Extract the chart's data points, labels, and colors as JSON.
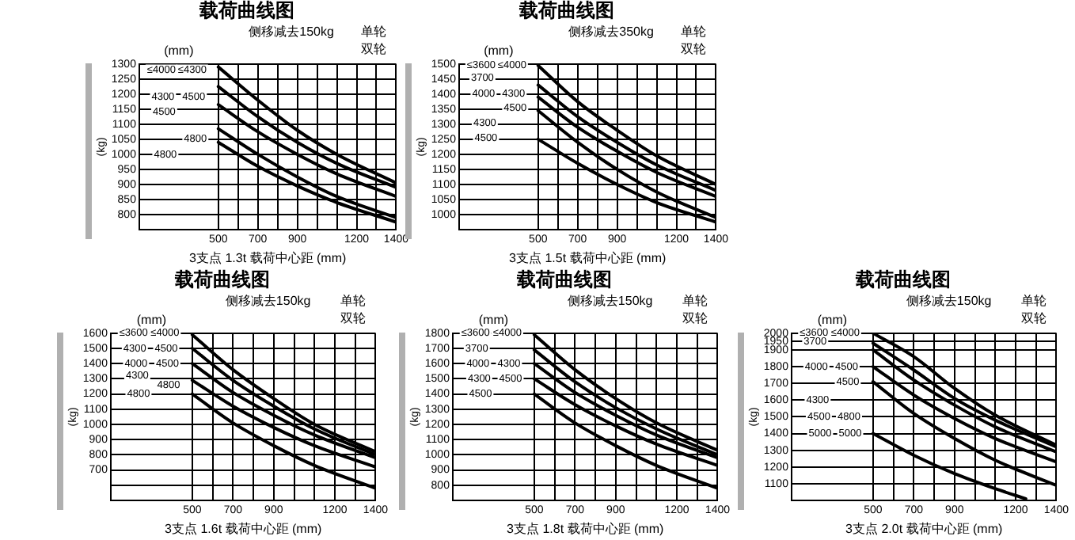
{
  "chart_data": [
    {
      "type": "line",
      "title": "载荷曲线图",
      "xlabel": "3支点 1.3t 载荷中心距 (mm)",
      "ylabel": "(kg)",
      "x": [
        500,
        700,
        900,
        1100,
        1400
      ],
      "xlim": [
        100,
        1400
      ],
      "xticks": [
        500,
        {
          "value": 600,
          "label": null
        },
        700,
        {
          "value": 800,
          "label": null
        },
        900,
        {
          "value": 1000,
          "label": null
        },
        {
          "value": 1100,
          "label": null
        },
        1200,
        {
          "value": 1300,
          "label": null
        },
        1400
      ],
      "ylim": [
        750,
        1300
      ],
      "yticks": [
        800,
        850,
        900,
        950,
        1000,
        1050,
        1100,
        1150,
        1200,
        1250,
        1300
      ],
      "grid": true,
      "marker": "none",
      "annotations": [
        "(mm)",
        "侧移减去150kg",
        "单轮",
        "双轮",
        {
          "text": "≤4000",
          "x": 212,
          "y": 1280
        },
        {
          "text": "4300",
          "x": 220,
          "y": 1190
        },
        {
          "text": "4500",
          "x": 226,
          "y": 1140
        },
        {
          "text": "4800",
          "x": 232,
          "y": 1000
        },
        {
          "text": "≤4300",
          "x": 368,
          "y": 1280
        },
        {
          "text": "4500",
          "x": 376,
          "y": 1190
        },
        {
          "text": "4800",
          "x": 384,
          "y": 1050
        }
      ],
      "series": [
        {
          "color": "#000000",
          "values": [
            1290,
            1180,
            1080,
            1000,
            905
          ]
        },
        {
          "color": "#000000",
          "values": [
            1225,
            1125,
            1040,
            970,
            890
          ]
        },
        {
          "color": "#000000",
          "values": [
            1165,
            1075,
            1000,
            935,
            860
          ]
        },
        {
          "color": "#000000",
          "values": [
            1085,
            1000,
            925,
            860,
            790
          ]
        },
        {
          "color": "#000000",
          "values": [
            1040,
            960,
            895,
            840,
            775
          ]
        }
      ]
    },
    {
      "type": "line",
      "title": "载荷曲线图",
      "xlabel": "3支点 1.5t 载荷中心距 (mm)",
      "ylabel": "(kg)",
      "x": [
        500,
        700,
        900,
        1100,
        1400
      ],
      "xlim": [
        100,
        1400
      ],
      "xticks": [
        500,
        {
          "value": 600,
          "label": null
        },
        700,
        {
          "value": 800,
          "label": null
        },
        900,
        {
          "value": 1000,
          "label": null
        },
        {
          "value": 1100,
          "label": null
        },
        1200,
        {
          "value": 1300,
          "label": null
        },
        1400
      ],
      "ylim": [
        950,
        1500
      ],
      "yticks": [
        1000,
        1050,
        1100,
        1150,
        1200,
        1250,
        1300,
        1350,
        1400,
        1450,
        1500
      ],
      "grid": true,
      "marker": "none",
      "annotations": [
        "(mm)",
        "侧移减去350kg",
        "单轮",
        "双轮",
        {
          "text": "≤3600",
          "x": 212,
          "y": 1495
        },
        {
          "text": "3700",
          "x": 218,
          "y": 1455
        },
        {
          "text": "4000",
          "x": 224,
          "y": 1400
        },
        {
          "text": "4300",
          "x": 230,
          "y": 1305
        },
        {
          "text": "4500",
          "x": 236,
          "y": 1255
        },
        {
          "text": "≤4000",
          "x": 368,
          "y": 1495
        },
        {
          "text": "4300",
          "x": 376,
          "y": 1400
        },
        {
          "text": "4500",
          "x": 384,
          "y": 1355
        }
      ],
      "series": [
        {
          "color": "#000000",
          "values": [
            1495,
            1375,
            1280,
            1195,
            1100
          ]
        },
        {
          "color": "#000000",
          "values": [
            1430,
            1325,
            1240,
            1165,
            1080
          ]
        },
        {
          "color": "#000000",
          "values": [
            1390,
            1290,
            1210,
            1140,
            1060
          ]
        },
        {
          "color": "#000000",
          "values": [
            1345,
            1240,
            1150,
            1075,
            990
          ]
        },
        {
          "color": "#000000",
          "values": [
            1250,
            1170,
            1100,
            1040,
            975
          ]
        }
      ]
    },
    {
      "type": "line",
      "title": "载荷曲线图",
      "xlabel": "3支点 1.6t 载荷中心距 (mm)",
      "ylabel": "(kg)",
      "x": [
        500,
        700,
        900,
        1100,
        1400
      ],
      "xlim": [
        100,
        1400
      ],
      "xticks": [
        500,
        {
          "value": 600,
          "label": null
        },
        700,
        {
          "value": 800,
          "label": null
        },
        900,
        {
          "value": 1000,
          "label": null
        },
        {
          "value": 1100,
          "label": null
        },
        1200,
        {
          "value": 1300,
          "label": null
        },
        1400
      ],
      "ylim": [
        500,
        1600
      ],
      "yticks": [
        {
          "value": 600,
          "label": null
        },
        700,
        800,
        900,
        1000,
        1100,
        1200,
        1300,
        1400,
        1500,
        1600
      ],
      "grid": true,
      "marker": "none",
      "annotations": [
        "(mm)",
        "侧移减去150kg",
        "单轮",
        "双轮",
        {
          "text": "≤3600",
          "x": 212,
          "y": 1600
        },
        {
          "text": "4300",
          "x": 218,
          "y": 1500
        },
        {
          "text": "4000",
          "x": 224,
          "y": 1400
        },
        {
          "text": "4300",
          "x": 230,
          "y": 1320
        },
        {
          "text": "4800",
          "x": 236,
          "y": 1200
        },
        {
          "text": "≤4000",
          "x": 366,
          "y": 1600
        },
        {
          "text": "4500",
          "x": 372,
          "y": 1500
        },
        {
          "text": "4500",
          "x": 378,
          "y": 1400
        },
        {
          "text": "4800",
          "x": 384,
          "y": 1260
        }
      ],
      "series": [
        {
          "color": "#000000",
          "values": [
            1590,
            1360,
            1170,
            1000,
            820
          ]
        },
        {
          "color": "#000000",
          "values": [
            1500,
            1290,
            1120,
            970,
            800
          ]
        },
        {
          "color": "#000000",
          "values": [
            1400,
            1210,
            1060,
            930,
            780
          ]
        },
        {
          "color": "#000000",
          "values": [
            1290,
            1120,
            980,
            860,
            720
          ]
        },
        {
          "color": "#000000",
          "values": [
            1200,
            1010,
            860,
            730,
            580
          ]
        }
      ]
    },
    {
      "type": "line",
      "title": "载荷曲线图",
      "xlabel": "3支点 1.8t 载荷中心距 (mm)",
      "ylabel": "(kg)",
      "x": [
        500,
        700,
        900,
        1100,
        1400
      ],
      "xlim": [
        100,
        1400
      ],
      "xticks": [
        500,
        {
          "value": 600,
          "label": null
        },
        700,
        {
          "value": 800,
          "label": null
        },
        900,
        {
          "value": 1000,
          "label": null
        },
        {
          "value": 1100,
          "label": null
        },
        1200,
        {
          "value": 1300,
          "label": null
        },
        1400
      ],
      "ylim": [
        700,
        1800
      ],
      "yticks": [
        800,
        900,
        1000,
        1100,
        1200,
        1300,
        1400,
        1500,
        1600,
        1700,
        1800
      ],
      "grid": true,
      "marker": "none",
      "annotations": [
        "(mm)",
        "侧移减去150kg",
        "单轮",
        "双轮",
        {
          "text": "≤3600",
          "x": 212,
          "y": 1800
        },
        {
          "text": "3700",
          "x": 218,
          "y": 1700
        },
        {
          "text": "4000",
          "x": 224,
          "y": 1600
        },
        {
          "text": "4300",
          "x": 230,
          "y": 1500
        },
        {
          "text": "4500",
          "x": 236,
          "y": 1400
        },
        {
          "text": "≤4000",
          "x": 368,
          "y": 1800
        },
        {
          "text": "4300",
          "x": 376,
          "y": 1600
        },
        {
          "text": "4500",
          "x": 384,
          "y": 1500
        }
      ],
      "series": [
        {
          "color": "#000000",
          "values": [
            1790,
            1560,
            1370,
            1210,
            1030
          ]
        },
        {
          "color": "#000000",
          "values": [
            1690,
            1480,
            1310,
            1170,
            1000
          ]
        },
        {
          "color": "#000000",
          "values": [
            1600,
            1410,
            1260,
            1130,
            980
          ]
        },
        {
          "color": "#000000",
          "values": [
            1500,
            1330,
            1190,
            1070,
            930
          ]
        },
        {
          "color": "#000000",
          "values": [
            1400,
            1210,
            1060,
            930,
            780
          ]
        }
      ]
    },
    {
      "type": "line",
      "title": "载荷曲线图",
      "xlabel": "3支点 2.0t 载荷中心距 (mm)",
      "ylabel": "(kg)",
      "x": [
        500,
        700,
        900,
        1100,
        1400
      ],
      "xlim": [
        100,
        1400
      ],
      "xticks": [
        500,
        {
          "value": 600,
          "label": null
        },
        700,
        {
          "value": 800,
          "label": null
        },
        900,
        {
          "value": 1000,
          "label": null
        },
        {
          "value": 1100,
          "label": null
        },
        1200,
        {
          "value": 1300,
          "label": null
        },
        1400
      ],
      "ylim": [
        1000,
        2000
      ],
      "yticks": [
        1100,
        1200,
        1300,
        1400,
        1500,
        1600,
        1700,
        1800,
        1900,
        1950,
        2000
      ],
      "grid": true,
      "marker": "none",
      "annotations": [
        "(mm)",
        "侧移减去150kg",
        "单轮",
        "双轮",
        {
          "text": "≤3600",
          "x": 210,
          "y": 2000
        },
        {
          "text": "3700",
          "x": 216,
          "y": 1950
        },
        {
          "text": "4000",
          "x": 222,
          "y": 1800
        },
        {
          "text": "4300",
          "x": 228,
          "y": 1600
        },
        {
          "text": "4500",
          "x": 234,
          "y": 1500
        },
        {
          "text": "5000",
          "x": 240,
          "y": 1400
        },
        {
          "text": "≤4000",
          "x": 364,
          "y": 2000
        },
        {
          "text": "4500",
          "x": 370,
          "y": 1800
        },
        {
          "text": "4500",
          "x": 376,
          "y": 1710
        },
        {
          "text": "4800",
          "x": 382,
          "y": 1500
        },
        {
          "text": "5000",
          "x": 388,
          "y": 1400
        }
      ],
      "series": [
        {
          "color": "#000000",
          "values": [
            2000,
            1860,
            1670,
            1510,
            1330
          ]
        },
        {
          "color": "#000000",
          "values": [
            1940,
            1780,
            1610,
            1480,
            1320
          ]
        },
        {
          "color": "#000000",
          "values": [
            1900,
            1720,
            1570,
            1440,
            1290
          ]
        },
        {
          "color": "#000000",
          "values": [
            1800,
            1630,
            1490,
            1370,
            1230
          ]
        },
        {
          "color": "#000000",
          "values": [
            1710,
            1520,
            1370,
            1240,
            1090
          ]
        },
        {
          "color": "#000000",
          "x": [
            500,
            700,
            900,
            1100,
            1250
          ],
          "values": [
            1400,
            1270,
            1160,
            1070,
            1010
          ]
        }
      ]
    }
  ]
}
